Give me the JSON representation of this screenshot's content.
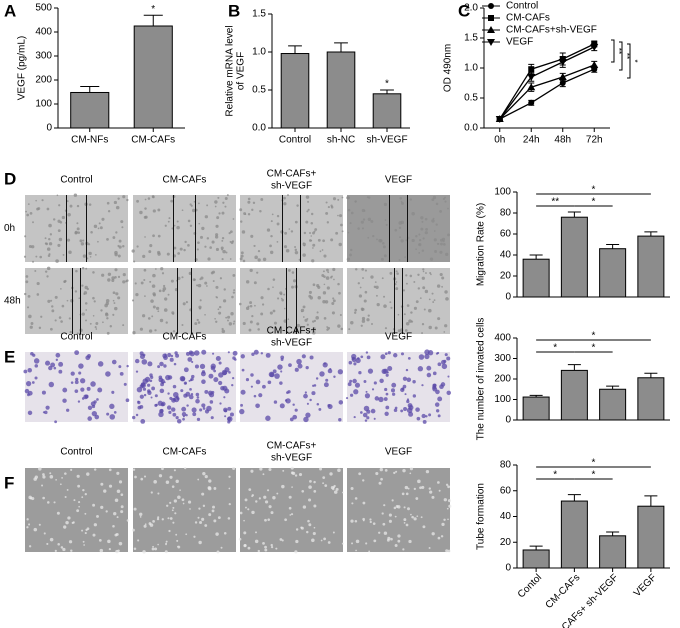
{
  "chart_data": [
    {
      "type": "bar",
      "label": "A",
      "ylabel": [
        "VEGF (pg/mL)"
      ],
      "categories": [
        "CM-NFs",
        "CM-CAFs"
      ],
      "values": [
        148,
        425
      ],
      "errors": [
        25,
        45
      ],
      "color": "#8c8c8c",
      "ylim": [
        0,
        500
      ],
      "yticks": [
        0,
        100,
        200,
        300,
        400,
        500
      ],
      "stars": [
        {
          "index": 1,
          "label": "*"
        }
      ]
    },
    {
      "type": "bar",
      "label": "B",
      "ylabel": [
        "Relative mRNA level",
        "of VEGF"
      ],
      "categories": [
        "Control",
        "sh-NC",
        "sh-VEGF"
      ],
      "values": [
        0.98,
        1.0,
        0.45
      ],
      "errors": [
        0.1,
        0.12,
        0.05
      ],
      "color": "#8c8c8c",
      "ylim": [
        0,
        1.5
      ],
      "yticks": [
        {
          "value": 0,
          "label": "0.0"
        },
        0.5,
        {
          "value": 1,
          "label": "1.0"
        },
        1.5
      ],
      "stars": [
        {
          "index": 2,
          "label": "*"
        }
      ]
    },
    {
      "type": "line",
      "label": "C",
      "ylabel": [
        "OD 490nm"
      ],
      "categories": [
        "0h",
        "24h",
        "48h",
        "72h"
      ],
      "series": [
        {
          "name": "Control",
          "marker": "circle",
          "color": "#000000",
          "values": [
            0.15,
            0.42,
            0.75,
            0.98
          ],
          "errors": [
            0.02,
            0.04,
            0.06,
            0.05
          ]
        },
        {
          "name": "CM-CAFs",
          "marker": "square",
          "color": "#000000",
          "values": [
            0.15,
            0.98,
            1.15,
            1.4
          ],
          "errors": [
            0.02,
            0.08,
            0.1,
            0.05
          ]
        },
        {
          "name": "CM-CAFs+sh-VEGF",
          "marker": "triangle-up",
          "color": "#000000",
          "values": [
            0.15,
            0.68,
            0.85,
            1.05
          ],
          "errors": [
            0.02,
            0.07,
            0.06,
            0.06
          ]
        },
        {
          "name": "VEGF",
          "marker": "triangle-down",
          "color": "#000000",
          "values": [
            0.15,
            0.85,
            1.1,
            1.35
          ],
          "errors": [
            0.02,
            0.07,
            0.09,
            0.06
          ]
        }
      ],
      "ylim": [
        0,
        2.0
      ],
      "yticks": [
        {
          "value": 0,
          "label": "0.0"
        },
        0.5,
        {
          "value": 1,
          "label": "1.0"
        },
        1.5,
        {
          "value": 2,
          "label": "2.0"
        }
      ],
      "annotations": [
        "**",
        "**",
        "*"
      ]
    },
    {
      "type": "bar",
      "ylabel": [
        "Migration Rate (%)"
      ],
      "values": [
        36,
        76,
        46,
        58
      ],
      "errors": [
        4,
        5,
        4,
        4
      ],
      "color": "#8c8c8c",
      "ylim": [
        0,
        100
      ],
      "yticks": [
        0,
        20,
        40,
        60,
        80,
        100
      ],
      "comparisons": [
        {
          "pair": [
            0,
            1
          ],
          "label": "**"
        },
        {
          "pair": [
            1,
            2
          ],
          "label": "*"
        },
        {
          "pair": [
            0,
            3
          ],
          "label": "*"
        }
      ]
    },
    {
      "type": "bar",
      "ylabel": [
        "The number of invated cells"
      ],
      "values": [
        112,
        242,
        150,
        206
      ],
      "errors": [
        8,
        28,
        15,
        22
      ],
      "color": "#8c8c8c",
      "ylim": [
        0,
        400
      ],
      "yticks": [
        0,
        100,
        200,
        300,
        400
      ],
      "comparisons": [
        {
          "pair": [
            0,
            1
          ],
          "label": "*"
        },
        {
          "pair": [
            1,
            2
          ],
          "label": "*"
        },
        {
          "pair": [
            0,
            3
          ],
          "label": "*"
        }
      ]
    },
    {
      "type": "bar",
      "ylabel": [
        "Tube formation"
      ],
      "categories": [
        "Contol",
        "CM-CAFs",
        "CM-CAFs+ sh-VEGF",
        "VEGF"
      ],
      "values": [
        14,
        52,
        25,
        48
      ],
      "errors": [
        3,
        5,
        3,
        8
      ],
      "color": "#8c8c8c",
      "ylim": [
        0,
        80
      ],
      "yticks": [
        0,
        20,
        40,
        60,
        80
      ],
      "rotate_labels": true,
      "comparisons": [
        {
          "pair": [
            0,
            1
          ],
          "label": "*"
        },
        {
          "pair": [
            1,
            2
          ],
          "label": "*"
        },
        {
          "pair": [
            0,
            3
          ],
          "label": "*"
        }
      ]
    }
  ],
  "image_panels": [
    {
      "letter": "D",
      "columns": [
        [
          "Control"
        ],
        [
          "CM-CAFs"
        ],
        [
          "CM-CAFs+",
          "sh-VEGF"
        ],
        [
          "VEGF"
        ]
      ],
      "rows": [
        "0h",
        "48h"
      ]
    },
    {
      "letter": "E",
      "columns": [
        [
          "Control"
        ],
        [
          "CM-CAFs"
        ],
        [
          "CM-CAFs+",
          "sh-VEGF"
        ],
        [
          "VEGF"
        ]
      ]
    },
    {
      "letter": "F",
      "columns": [
        [
          "Control"
        ],
        [
          "CM-CAFs"
        ],
        [
          "CM-CAFs+",
          "sh-VEGF"
        ],
        [
          "VEGF"
        ]
      ]
    }
  ]
}
